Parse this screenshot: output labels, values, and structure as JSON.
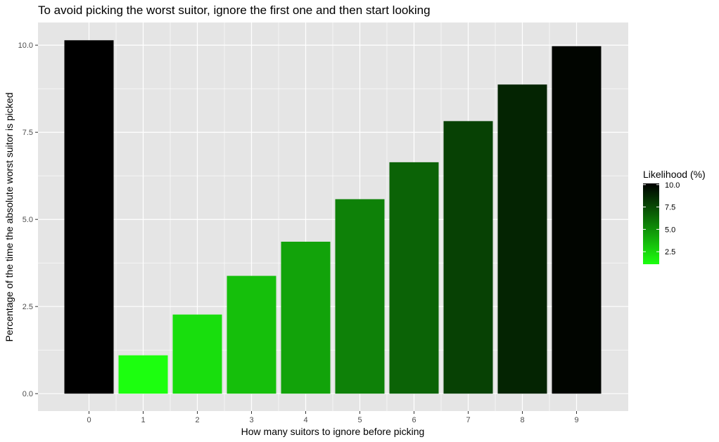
{
  "chart_data": {
    "type": "bar",
    "title": "To avoid picking the worst suitor, ignore the first one and then start looking",
    "xlabel": "How many suitors to ignore before picking",
    "ylabel": "Percentage of the time the absolute worst suitor is picked",
    "categories": [
      "0",
      "1",
      "2",
      "3",
      "4",
      "5",
      "6",
      "7",
      "8",
      "9"
    ],
    "values": [
      10.14,
      1.1,
      2.27,
      3.38,
      4.36,
      5.58,
      6.64,
      7.82,
      8.87,
      9.97
    ],
    "ylim": [
      -0.5,
      10.65
    ],
    "y_ticks": [
      0.0,
      2.5,
      5.0,
      7.5,
      10.0
    ],
    "y_tick_labels": [
      "0.0",
      "2.5",
      "5.0",
      "7.5",
      "10.0"
    ],
    "grid": true,
    "fill_gradient": {
      "low_value": 1.1,
      "high_value": 10.14,
      "low_color": "#1cff0f",
      "high_color": "#000000"
    },
    "legend": {
      "title": "Likelihood (%)",
      "placement": "right",
      "ticks": [
        10.0,
        7.5,
        5.0,
        2.5
      ],
      "tick_labels": [
        "10.0",
        "7.5",
        "5.0",
        "2.5"
      ]
    },
    "panel_background": "#e5e5e5",
    "grid_color": "#ffffff"
  }
}
